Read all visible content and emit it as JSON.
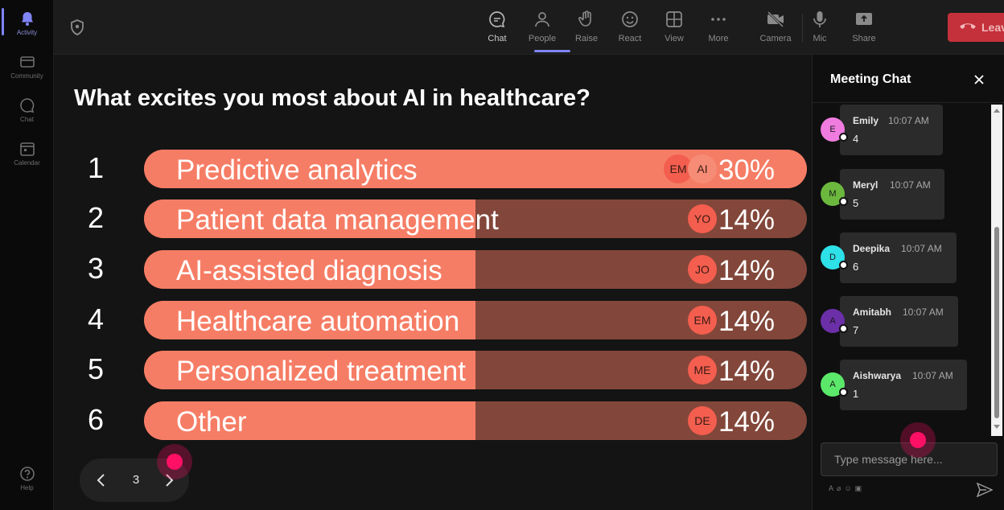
{
  "rail": {
    "items": [
      {
        "label": "Activity",
        "icon": "bell-icon"
      },
      {
        "label": "Community",
        "icon": "community-icon"
      },
      {
        "label": "Chat",
        "icon": "chat-icon"
      },
      {
        "label": "Calendar",
        "icon": "calendar-icon"
      }
    ],
    "help": {
      "label": "Help",
      "icon": "help-icon"
    }
  },
  "toolbar": {
    "buttons": [
      {
        "label": "Chat",
        "icon": "chat-icon",
        "active": true
      },
      {
        "label": "People",
        "icon": "people-icon"
      },
      {
        "label": "Raise",
        "icon": "raise-hand-icon"
      },
      {
        "label": "React",
        "icon": "smiley-icon"
      },
      {
        "label": "View",
        "icon": "grid-icon"
      },
      {
        "label": "More",
        "icon": "more-icon"
      },
      {
        "label": "Camera",
        "icon": "camera-off-icon"
      },
      {
        "label": "Mic",
        "icon": "mic-icon"
      },
      {
        "label": "Share",
        "icon": "share-icon"
      }
    ],
    "leave_label": "Leave",
    "leave_color": "#c4313b"
  },
  "poll": {
    "question": "What excites you most about AI in healthcare?",
    "options": [
      {
        "num": "1",
        "label": "Predictive analytics",
        "percent": "30%",
        "fill": 1.0,
        "avatars": [
          "EM",
          "AI"
        ]
      },
      {
        "num": "2",
        "label": "Patient data management",
        "percent": "14%",
        "fill": 0.5,
        "avatars": [
          "YO"
        ]
      },
      {
        "num": "3",
        "label": "AI-assisted diagnosis",
        "percent": "14%",
        "fill": 0.5,
        "avatars": [
          "JO"
        ]
      },
      {
        "num": "4",
        "label": "Healthcare automation",
        "percent": "14%",
        "fill": 0.5,
        "avatars": [
          "EM"
        ]
      },
      {
        "num": "5",
        "label": "Personalized treatment",
        "percent": "14%",
        "fill": 0.5,
        "avatars": [
          "ME"
        ]
      },
      {
        "num": "6",
        "label": "Other",
        "percent": "14%",
        "fill": 0.5,
        "avatars": [
          "DE"
        ]
      }
    ],
    "bar_color": "#f67d65",
    "track_color": "#82473a",
    "page": "3"
  },
  "chat": {
    "title": "Meeting Chat",
    "messages": [
      {
        "initial": "E",
        "name": "Emily",
        "time": "10:07 AM",
        "text": "4",
        "color": "#f07ce0"
      },
      {
        "initial": "M",
        "name": "Meryl",
        "time": "10:07 AM",
        "text": "5",
        "color": "#6cb83e"
      },
      {
        "initial": "D",
        "name": "Deepika",
        "time": "10:07 AM",
        "text": "6",
        "color": "#2ee0e8"
      },
      {
        "initial": "A",
        "name": "Amitabh",
        "time": "10:07 AM",
        "text": "7",
        "color": "#6b2fa8"
      },
      {
        "initial": "A",
        "name": "Aishwarya",
        "time": "10:07 AM",
        "text": "1",
        "color": "#5be86a"
      }
    ],
    "input_placeholder": "Type message here..."
  }
}
